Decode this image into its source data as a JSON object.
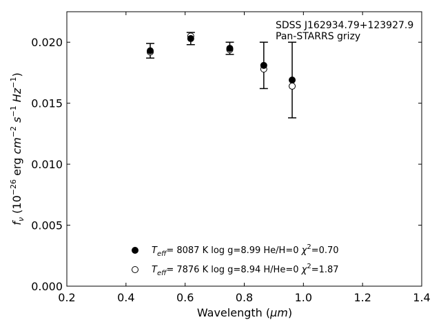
{
  "chart_data": {
    "type": "scatter",
    "title": "",
    "xlabel_text": "Wavelength (",
    "xlabel_unit": "μm",
    "xlabel_close": ")",
    "ylabel": "f_ν (10^-26 erg cm^-2 s^-1 Hz^-1)",
    "xlim": [
      0.2,
      1.4
    ],
    "ylim": [
      0.0,
      0.0225
    ],
    "xticks": [
      "0.2",
      "0.4",
      "0.6",
      "0.8",
      "1.0",
      "1.2",
      "1.4"
    ],
    "yticks": [
      "0.000",
      "0.005",
      "0.010",
      "0.015",
      "0.020"
    ],
    "grid": false,
    "legend_position": "lower-center",
    "annotation": [
      "SDSS J162934.79+123927.9",
      "Pan-STARRS grizy"
    ],
    "observed": {
      "x": [
        0.482,
        0.619,
        0.751,
        0.866,
        0.962
      ],
      "y": [
        0.0193,
        0.0203,
        0.0195,
        0.0181,
        0.0169
      ],
      "yerr": [
        0.0006,
        0.0005,
        0.0005,
        0.0019,
        0.0031
      ]
    },
    "series": [
      {
        "marker": "filled-circle",
        "label": "T_eff=  8087 K  log g=8.99  He/H=0  χ²=0.70",
        "x": [
          0.482,
          0.619,
          0.751,
          0.866,
          0.962
        ],
        "y": [
          0.0193,
          0.0203,
          0.0195,
          0.0181,
          0.0169
        ]
      },
      {
        "marker": "open-circle",
        "label": "T_eff=  7876 K  log g=8.94  H/He=0  χ²=1.87",
        "x": [
          0.482,
          0.619,
          0.751,
          0.866,
          0.962
        ],
        "y": [
          0.0192,
          0.0205,
          0.0194,
          0.0178,
          0.0164
        ]
      }
    ],
    "legend": [
      {
        "pre": "=  8087 K  log g=8.99  He/H=0  ",
        "post": "=0.70"
      },
      {
        "pre": "=  7876 K  log g=8.94  H/He=0  ",
        "post": "=1.87"
      }
    ]
  }
}
